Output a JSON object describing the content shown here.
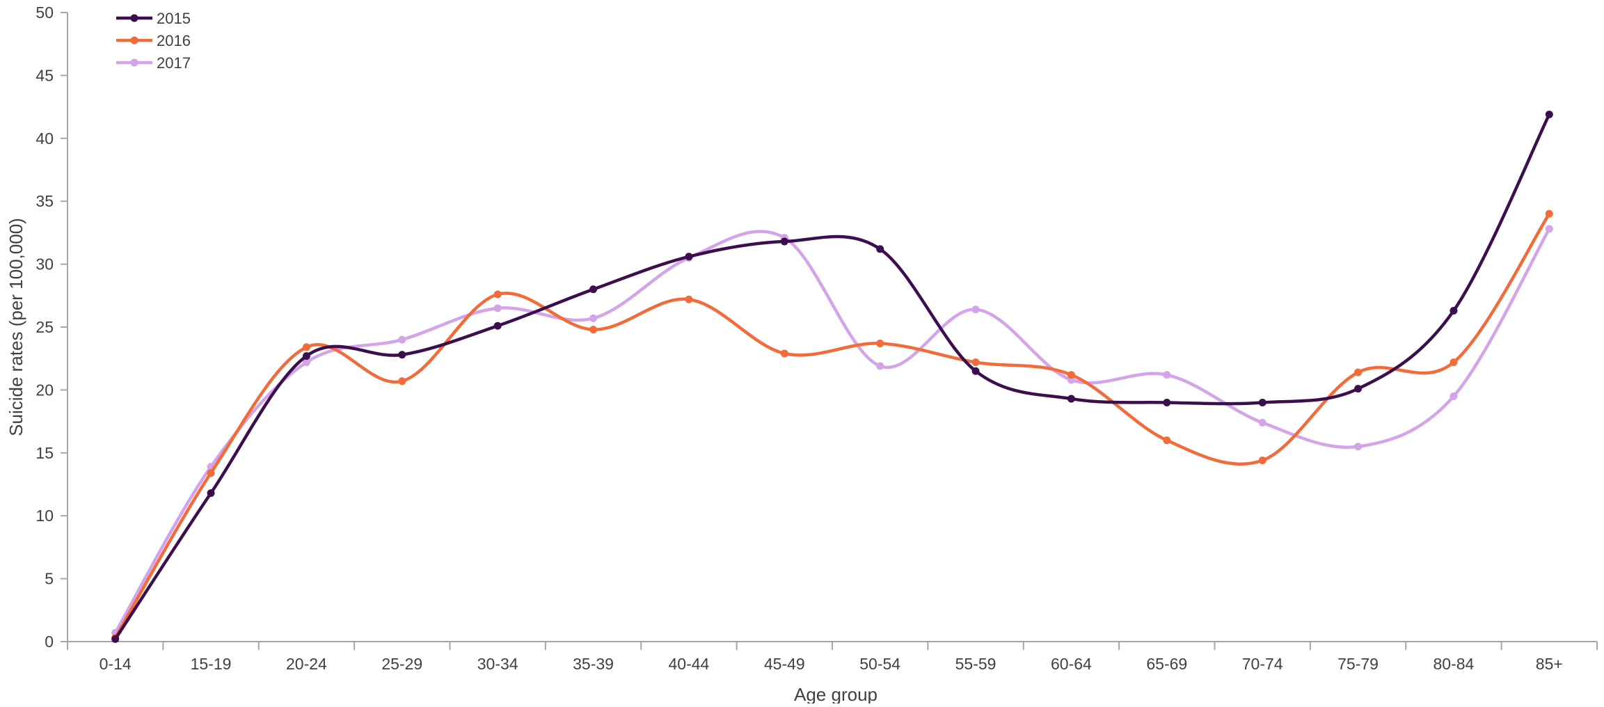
{
  "chart_data": {
    "type": "line",
    "smooth": true,
    "title": "",
    "xlabel": "Age group",
    "ylabel": "Suicide rates (per 100,000)",
    "ylim": [
      0,
      50
    ],
    "yticks": [
      0,
      5,
      10,
      15,
      20,
      25,
      30,
      35,
      40,
      45,
      50
    ],
    "grid": false,
    "legend_position": "top-left",
    "categories": [
      "0-14",
      "15-19",
      "20-24",
      "25-29",
      "30-34",
      "35-39",
      "40-44",
      "45-49",
      "50-54",
      "55-59",
      "60-64",
      "65-69",
      "70-74",
      "75-79",
      "80-84",
      "85+"
    ],
    "series": [
      {
        "name": "2015",
        "color": "#3b0f4e",
        "values": [
          0.2,
          11.8,
          22.7,
          22.8,
          25.1,
          28.0,
          30.6,
          31.8,
          31.2,
          21.5,
          19.3,
          19.0,
          19.0,
          20.1,
          26.3,
          41.9
        ]
      },
      {
        "name": "2016",
        "color": "#f26b3a",
        "values": [
          0.3,
          13.4,
          23.4,
          20.7,
          27.6,
          24.8,
          27.2,
          22.9,
          23.7,
          22.2,
          21.2,
          16.0,
          14.4,
          21.4,
          22.2,
          34.0
        ]
      },
      {
        "name": "2017",
        "color": "#d4a4ea",
        "values": [
          0.7,
          13.9,
          22.2,
          24.0,
          26.5,
          25.7,
          30.5,
          32.1,
          21.9,
          26.4,
          20.8,
          21.2,
          17.4,
          15.5,
          19.5,
          32.8
        ]
      }
    ]
  }
}
